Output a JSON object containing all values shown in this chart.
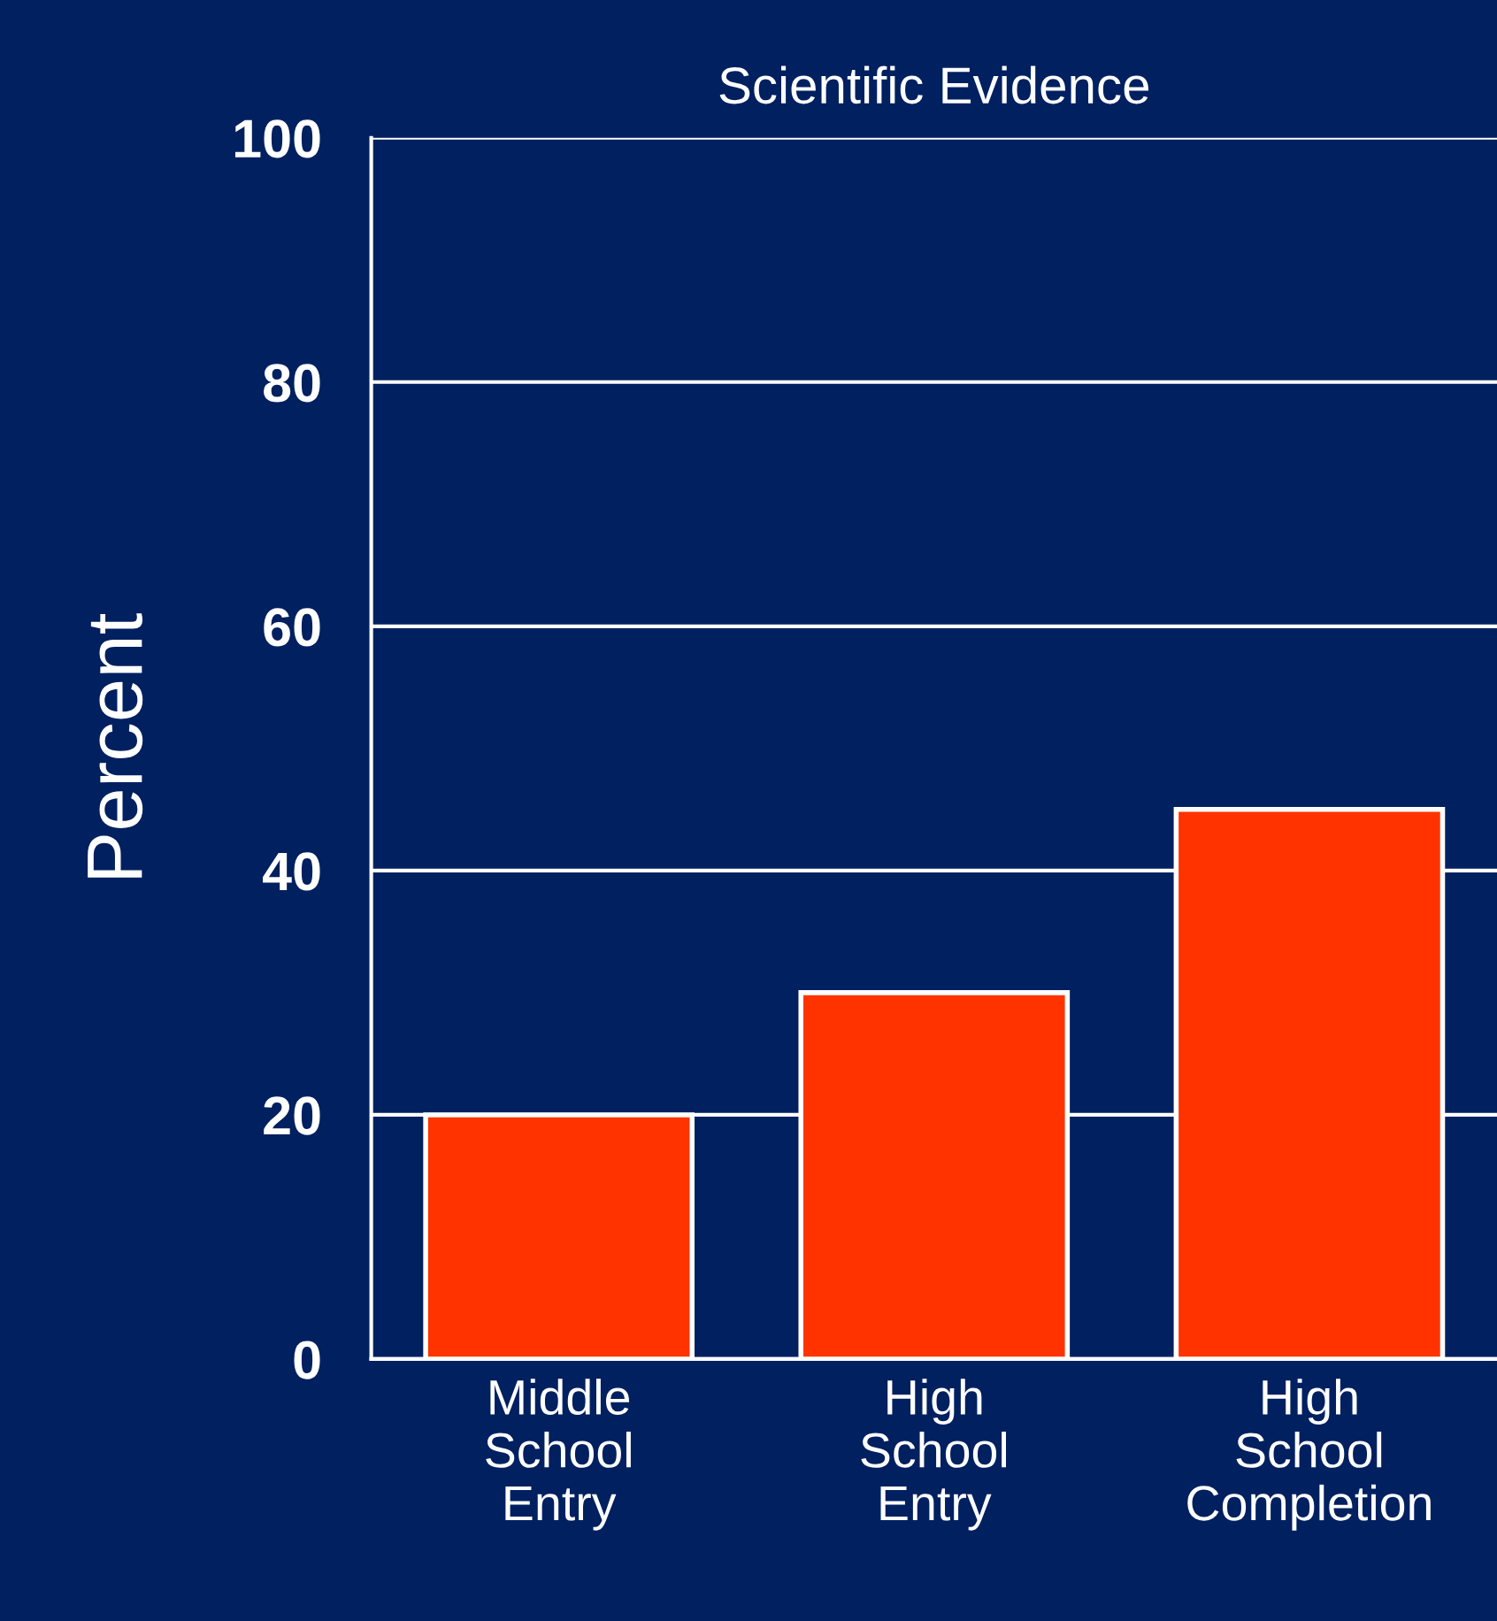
{
  "chart_data": {
    "type": "bar",
    "title": "Scientific Evidence",
    "ylabel": "Percent",
    "categories": [
      "Middle\nSchool\nEntry",
      "High\nSchool\nEntry",
      "High\nSchool\nCompletion"
    ],
    "values": [
      20,
      30,
      45
    ],
    "color": "#ff3300",
    "ylim": [
      0,
      100
    ],
    "yticks": [
      0,
      20,
      40,
      60,
      80,
      100
    ],
    "grid": "y"
  }
}
